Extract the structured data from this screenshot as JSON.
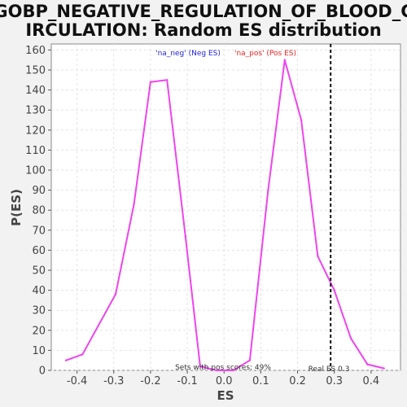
{
  "chart_data": {
    "type": "line",
    "title_line1": "GOBP_NEGATIVE_REGULATION_OF_BLOOD_C",
    "title_line2": "IRCULATION: Random ES distribution",
    "xlabel": "ES",
    "ylabel": "P(ES)",
    "xlim": [
      -0.47,
      0.48
    ],
    "ylim": [
      0,
      163
    ],
    "x_ticks": [
      -0.4,
      -0.3,
      -0.2,
      -0.1,
      0.0,
      0.1,
      0.2,
      0.3,
      0.4
    ],
    "x_tick_labels": [
      "-0.4",
      "-0.3",
      "-0.2",
      "-0.1",
      "0.0",
      "0.1",
      "0.2",
      "0.3",
      "0.4"
    ],
    "y_ticks": [
      0,
      10,
      20,
      30,
      40,
      50,
      60,
      70,
      80,
      90,
      100,
      110,
      120,
      130,
      140,
      150,
      160
    ],
    "y_tick_labels": [
      "0",
      "10",
      "20",
      "30",
      "40",
      "50",
      "60",
      "70",
      "80",
      "90",
      "100",
      "110",
      "120",
      "130",
      "140",
      "150",
      "160"
    ],
    "grid": true,
    "legend_placement": "top-center",
    "legend": [
      {
        "label": "'na_neg' (Neg ES)",
        "color": "#2222dd"
      },
      {
        "label": "'na_pos' (Pos ES)",
        "color": "#ee2222"
      }
    ],
    "series": [
      {
        "color": "#ee44ee",
        "x": [
          -0.43,
          -0.385,
          -0.295,
          -0.245,
          -0.2,
          -0.155,
          -0.105,
          -0.065,
          -0.02,
          0.025,
          0.07,
          0.12,
          0.165,
          0.21,
          0.255,
          0.3,
          0.345,
          0.39,
          0.435
        ],
        "y": [
          5,
          8,
          38,
          83,
          144,
          145,
          67,
          2,
          0,
          0,
          5,
          90,
          155,
          125,
          57,
          40,
          16,
          3,
          1
        ]
      }
    ],
    "real_es": 0.29,
    "real_es_color": "#111111",
    "annotations": {
      "pos_scores": "Sets with pos scores: 49%",
      "real_es": "Real ES 0.3"
    }
  }
}
